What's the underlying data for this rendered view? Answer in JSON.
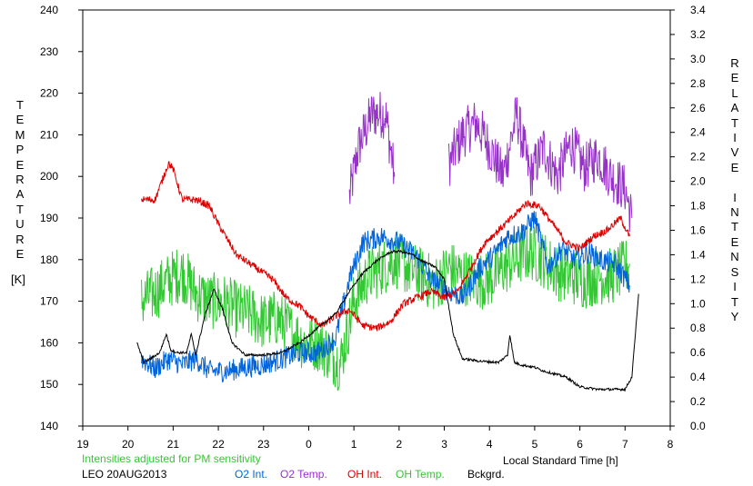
{
  "chart_data": {
    "type": "line",
    "title": "",
    "xlabel": "Local Standard Time [h]",
    "left_axis": {
      "label": "TEMPERATURE",
      "unit": "[K]",
      "range": [
        140,
        240
      ],
      "ticks": [
        "140",
        "150",
        "160",
        "170",
        "180",
        "190",
        "200",
        "210",
        "220",
        "230",
        "240"
      ]
    },
    "right_axis": {
      "label": "RELATIVE INTENSITY",
      "range": [
        0.0,
        3.4
      ],
      "ticks": [
        "0.0",
        "0.2",
        "0.4",
        "0.6",
        "0.8",
        "1.0",
        "1.2",
        "1.4",
        "1.6",
        "1.8",
        "2.0",
        "2.2",
        "2.4",
        "2.6",
        "2.8",
        "3.0",
        "3.2",
        "3.4"
      ]
    },
    "x_range": [
      19,
      32
    ],
    "x_ticks": [
      {
        "pos": 19,
        "label": "19"
      },
      {
        "pos": 20,
        "label": "20"
      },
      {
        "pos": 21,
        "label": "21"
      },
      {
        "pos": 22,
        "label": "22"
      },
      {
        "pos": 23,
        "label": "23"
      },
      {
        "pos": 24,
        "label": "0"
      },
      {
        "pos": 25,
        "label": "1"
      },
      {
        "pos": 26,
        "label": "2"
      },
      {
        "pos": 27,
        "label": "3"
      },
      {
        "pos": 28,
        "label": "4"
      },
      {
        "pos": 29,
        "label": "5"
      },
      {
        "pos": 30,
        "label": "6"
      },
      {
        "pos": 31,
        "label": "7"
      },
      {
        "pos": 32,
        "label": "8"
      }
    ],
    "grid": false,
    "note": "Intensities adjusted for PM sensitivity",
    "station": "LEO 20AUG2013",
    "series": [
      {
        "name": "O2 Int.",
        "color": "#0064dc",
        "axis": "right",
        "noise": 0.09,
        "x": [
          20.3,
          20.6,
          20.9,
          21.2,
          21.5,
          21.8,
          22.2,
          22.6,
          23.0,
          23.4,
          23.8,
          24.2,
          24.6,
          24.9,
          25.2,
          25.6,
          26.0,
          26.4,
          26.7,
          27.0,
          27.4,
          27.8,
          28.1,
          28.4,
          28.7,
          29.0,
          29.3,
          29.6,
          29.9,
          30.2,
          30.5,
          30.8,
          31.1
        ],
        "y": [
          0.55,
          0.47,
          0.55,
          0.5,
          0.55,
          0.45,
          0.45,
          0.48,
          0.5,
          0.55,
          0.6,
          0.6,
          0.72,
          1.2,
          1.5,
          1.55,
          1.5,
          1.38,
          1.2,
          1.12,
          1.05,
          1.3,
          1.4,
          1.55,
          1.58,
          1.7,
          1.3,
          1.45,
          1.35,
          1.42,
          1.35,
          1.32,
          1.15
        ]
      },
      {
        "name": "O2 Temp.",
        "color": "#9632c8",
        "axis": "left",
        "noise": 6,
        "segments": [
          {
            "x": [
              24.9,
              25.1,
              25.4,
              25.7,
              25.9
            ],
            "y": [
              195,
              207,
              215,
              215,
              200
            ]
          },
          {
            "x": [
              27.1,
              27.4,
              27.7,
              28.0,
              28.3,
              28.6,
              28.9,
              29.2,
              29.5,
              29.8,
              30.1,
              30.4,
              30.7,
              31.0,
              31.15
            ],
            "y": [
              203,
              210,
              213,
              207,
              200,
              215,
              200,
              207,
              200,
              208,
              202,
              205,
              200,
              197,
              190
            ]
          }
        ]
      },
      {
        "name": "OH Int.",
        "color": "#dc0000",
        "axis": "right",
        "noise": 0.03,
        "x": [
          20.3,
          20.6,
          20.9,
          21.0,
          21.2,
          21.5,
          21.8,
          22.0,
          22.4,
          22.8,
          23.2,
          23.5,
          23.8,
          24.0,
          24.3,
          24.6,
          24.9,
          25.2,
          25.5,
          25.8,
          26.1,
          26.4,
          26.7,
          27.0,
          27.3,
          27.6,
          27.9,
          28.2,
          28.5,
          28.8,
          29.1,
          29.4,
          29.7,
          30.0,
          30.3,
          30.6,
          30.9,
          31.1
        ],
        "y": [
          1.85,
          1.85,
          2.15,
          2.1,
          1.85,
          1.85,
          1.8,
          1.65,
          1.4,
          1.3,
          1.2,
          1.05,
          0.98,
          0.9,
          0.82,
          0.9,
          0.95,
          0.82,
          0.8,
          0.85,
          1.0,
          1.05,
          1.1,
          1.05,
          1.1,
          1.3,
          1.5,
          1.6,
          1.7,
          1.82,
          1.8,
          1.65,
          1.5,
          1.45,
          1.55,
          1.6,
          1.7,
          1.55
        ]
      },
      {
        "name": "OH Temp.",
        "color": "#32c832",
        "axis": "left",
        "noise": 7,
        "x": [
          20.3,
          20.6,
          20.9,
          21.2,
          21.5,
          21.8,
          22.1,
          22.4,
          22.7,
          23.0,
          23.3,
          23.6,
          23.9,
          24.2,
          24.5,
          24.7,
          25.0,
          25.3,
          25.6,
          25.9,
          26.2,
          26.5,
          26.8,
          27.1,
          27.4,
          27.7,
          28.0,
          28.3,
          28.6,
          28.9,
          29.2,
          29.5,
          29.8,
          30.1,
          30.4,
          30.7,
          31.0,
          31.1
        ],
        "y": [
          170,
          172,
          175,
          177,
          172,
          170,
          170,
          168,
          167,
          165,
          166,
          163,
          160,
          160,
          157,
          155,
          170,
          176,
          178,
          180,
          178,
          176,
          174,
          178,
          176,
          175,
          175,
          178,
          180,
          182,
          180,
          177,
          176,
          175,
          176,
          176,
          178,
          179
        ]
      },
      {
        "name": "Bckgrd.",
        "color": "#000000",
        "axis": "right",
        "noise": 0.01,
        "x": [
          20.2,
          20.35,
          20.5,
          20.7,
          20.85,
          20.95,
          21.1,
          21.3,
          21.4,
          21.5,
          21.7,
          21.9,
          22.1,
          22.3,
          22.6,
          23.0,
          23.4,
          23.8,
          24.2,
          24.6,
          24.9,
          25.2,
          25.5,
          25.8,
          26.0,
          26.3,
          26.5,
          26.8,
          27.0,
          27.2,
          27.4,
          27.8,
          28.2,
          28.4,
          28.45,
          28.55,
          28.7,
          29.0,
          29.2,
          29.5,
          29.7,
          30.0,
          30.4,
          30.8,
          31.0,
          31.15,
          31.3
        ],
        "y": [
          0.68,
          0.52,
          0.55,
          0.6,
          0.75,
          0.62,
          0.6,
          0.6,
          0.75,
          0.58,
          0.9,
          1.12,
          0.95,
          0.68,
          0.58,
          0.58,
          0.6,
          0.68,
          0.8,
          0.92,
          1.1,
          1.25,
          1.35,
          1.42,
          1.43,
          1.4,
          1.35,
          1.3,
          1.2,
          0.75,
          0.55,
          0.53,
          0.52,
          0.58,
          0.75,
          0.52,
          0.5,
          0.48,
          0.45,
          0.42,
          0.4,
          0.32,
          0.3,
          0.3,
          0.3,
          0.4,
          1.08
        ]
      }
    ]
  },
  "legend": [
    {
      "label": "O2 Int.",
      "color": "#0064dc"
    },
    {
      "label": "O2 Temp.",
      "color": "#9632c8"
    },
    {
      "label": "OH Int.",
      "color": "#dc0000"
    },
    {
      "label": "OH Temp.",
      "color": "#32c832"
    },
    {
      "label": "Bckgrd.",
      "color": "#000000"
    }
  ],
  "colors": {
    "note": "#32c832"
  }
}
